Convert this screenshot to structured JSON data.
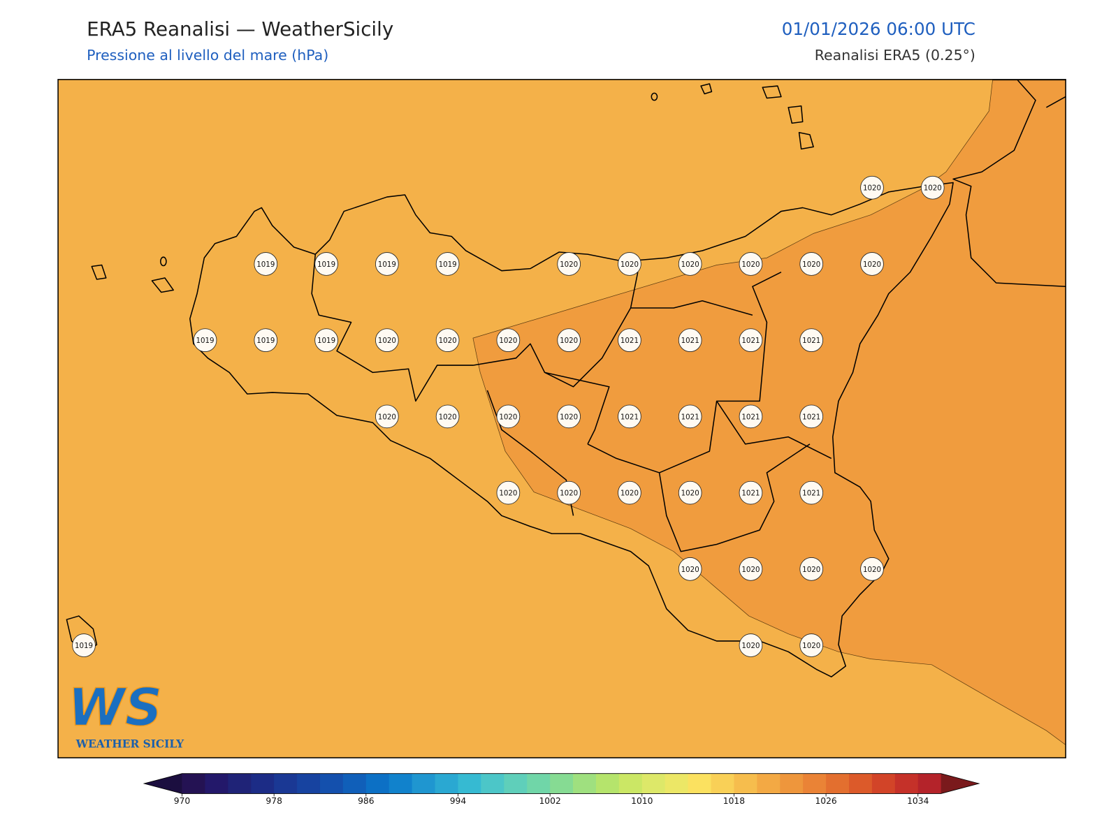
{
  "header": {
    "title": "ERA5 Reanalisi — WeatherSicily",
    "subtitle": "Pressione al livello del mare (hPa)",
    "datetime": "01/01/2026 06:00 UTC",
    "source": "Reanalisi ERA5 (0.25°)"
  },
  "map": {
    "background_color": "#f4b149",
    "high_zone_color": "#f09c3e",
    "pressure_labels": [
      1020,
      1020,
      1019,
      1019,
      1019,
      1019,
      1020,
      1020,
      1020,
      1020,
      1020,
      1020,
      1019,
      1019,
      1019,
      1020,
      1020,
      1020,
      1020,
      1021,
      1021,
      1021,
      1021,
      1020,
      1020,
      1020,
      1020,
      1021,
      1021,
      1021,
      1021,
      1020,
      1020,
      1020,
      1020,
      1021,
      1021,
      1020,
      1020,
      1020,
      1020,
      1019,
      1020,
      1020
    ]
  },
  "logo": {
    "mark": "WS",
    "text": "WEATHER SICILY"
  },
  "colorbar": {
    "lim": [
      970,
      1036
    ],
    "ticks": [
      970,
      978,
      986,
      994,
      1002,
      1010,
      1018,
      1026,
      1034
    ],
    "colors": [
      "#241253",
      "#23186a",
      "#1f2377",
      "#1c2c86",
      "#1a3894",
      "#1743a0",
      "#1450ad",
      "#105fb9",
      "#0c70c5",
      "#1182cc",
      "#1f96d0",
      "#2aa8d2",
      "#36bad2",
      "#4cc6c8",
      "#5fcfba",
      "#70d6a8",
      "#86db93",
      "#9fe07f",
      "#b5e46c",
      "#cbe765",
      "#dde869",
      "#ece766",
      "#fbe160",
      "#f9d057",
      "#f6bd4d",
      "#f3a944",
      "#ee963c",
      "#ea8336",
      "#e36f2f",
      "#dc5a2a",
      "#d24428",
      "#c53129",
      "#b4232a"
    ],
    "under_color": "#1b0e3f",
    "over_color": "#7a1a1c"
  }
}
